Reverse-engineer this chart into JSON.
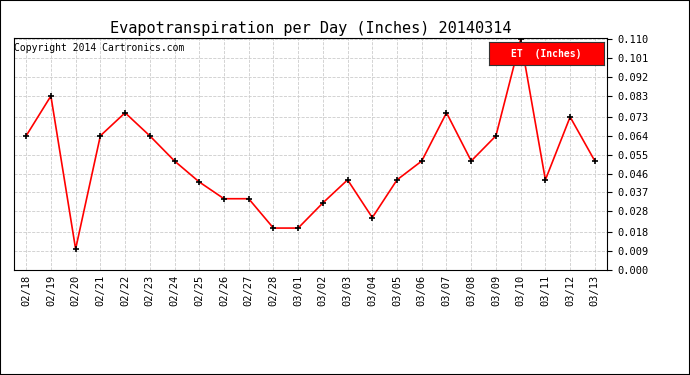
{
  "title": "Evapotranspiration per Day (Inches) 20140314",
  "copyright": "Copyright 2014 Cartronics.com",
  "legend_label": "ET  (Inches)",
  "legend_bg": "#ff0000",
  "legend_fg": "#ffffff",
  "dates": [
    "02/18",
    "02/19",
    "02/20",
    "02/21",
    "02/22",
    "02/23",
    "02/24",
    "02/25",
    "02/26",
    "02/27",
    "02/28",
    "03/01",
    "03/02",
    "03/03",
    "03/04",
    "03/05",
    "03/06",
    "03/07",
    "03/08",
    "03/09",
    "03/10",
    "03/11",
    "03/12",
    "03/13"
  ],
  "values": [
    0.064,
    0.083,
    0.01,
    0.064,
    0.075,
    0.064,
    0.052,
    0.042,
    0.034,
    0.034,
    0.02,
    0.02,
    0.032,
    0.043,
    0.025,
    0.043,
    0.052,
    0.075,
    0.052,
    0.064,
    0.11,
    0.043,
    0.073,
    0.052
  ],
  "ylim": [
    0.0,
    0.1109
  ],
  "yticks": [
    0.0,
    0.009,
    0.018,
    0.028,
    0.037,
    0.046,
    0.055,
    0.064,
    0.073,
    0.083,
    0.092,
    0.101,
    0.11
  ],
  "line_color": "#ff0000",
  "marker_color": "#000000",
  "bg_color": "#ffffff",
  "grid_color": "#cccccc",
  "title_fontsize": 11,
  "copyright_fontsize": 7,
  "tick_fontsize": 7.5
}
